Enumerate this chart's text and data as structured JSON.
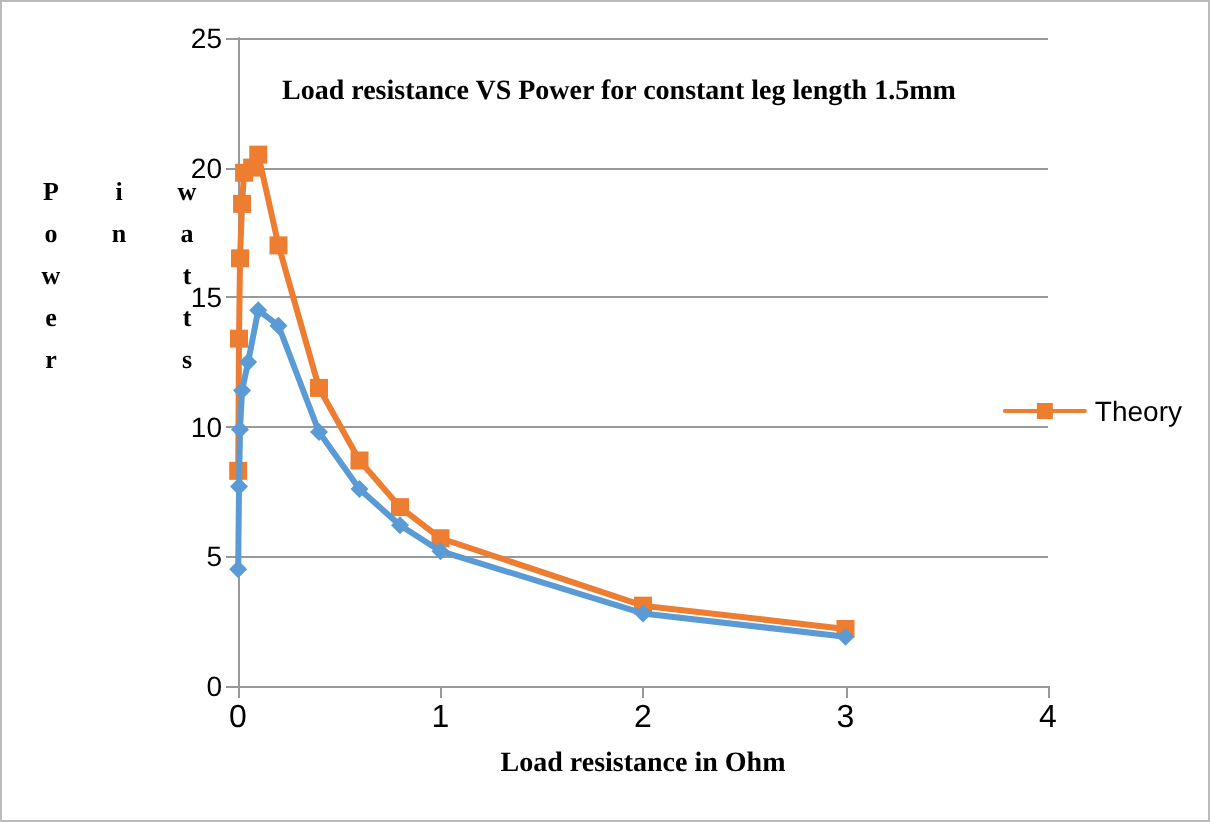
{
  "chart_data": {
    "type": "line",
    "title": "Load resistance VS Power for constant leg length 1.5mm",
    "xlabel": "Load resistance in Ohm",
    "ylabel": "Power in watts",
    "xlim": [
      0,
      4
    ],
    "xticks": [
      0,
      1,
      2,
      3,
      4
    ],
    "ylim": [
      0,
      25
    ],
    "yticks": [
      0,
      5,
      10,
      15,
      20,
      25
    ],
    "grid": "y",
    "legend": "right",
    "series": [
      {
        "color": "#5b9bd5",
        "marker": "diamond",
        "x": [
          0.001,
          0.005,
          0.01,
          0.02,
          0.05,
          0.1,
          0.2,
          0.4,
          0.6,
          0.8,
          1,
          2,
          3
        ],
        "values": [
          4.5,
          7.7,
          9.9,
          11.4,
          12.5,
          14.5,
          13.9,
          9.8,
          7.6,
          6.2,
          5.2,
          2.8,
          1.9
        ]
      },
      {
        "name": "Theory",
        "color": "#ed7d31",
        "marker": "square",
        "x": [
          0.001,
          0.005,
          0.01,
          0.02,
          0.03,
          0.07,
          0.1,
          0.2,
          0.4,
          0.6,
          0.8,
          1,
          2,
          3
        ],
        "values": [
          8.3,
          13.4,
          16.5,
          18.6,
          19.8,
          20.0,
          20.5,
          17.0,
          11.5,
          8.7,
          6.9,
          5.7,
          3.1,
          2.2
        ]
      }
    ]
  }
}
